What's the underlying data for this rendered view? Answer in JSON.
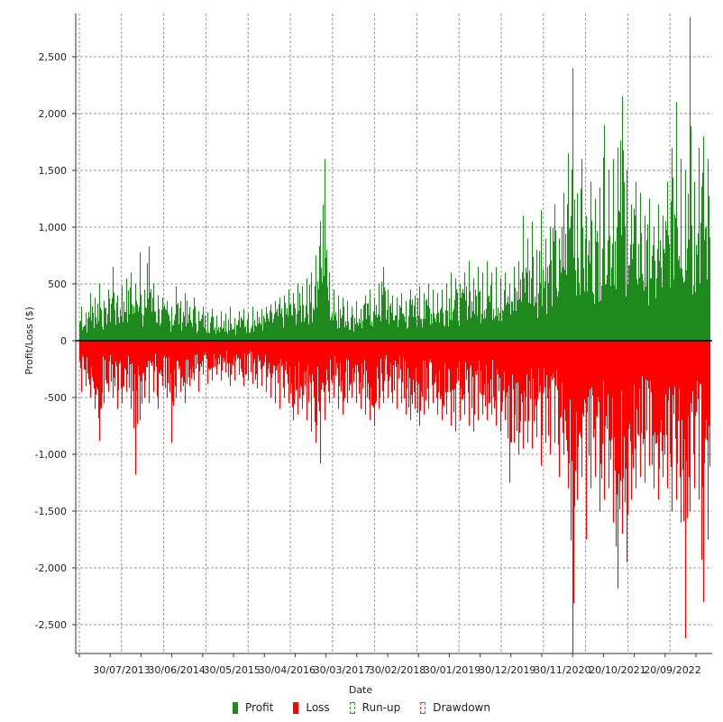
{
  "chart_data": {
    "type": "bar",
    "title": "",
    "xlabel": "Date",
    "ylabel": "Profit/Loss ($)",
    "ylim": [
      -2800,
      2900
    ],
    "yticks": [
      -2500,
      -2000,
      -1500,
      -1000,
      -500,
      0,
      500,
      1000,
      1500,
      2000,
      2500
    ],
    "ytick_labels": [
      "-2,500",
      "-2,000",
      "-1,500",
      "-1,000",
      "-500",
      "0",
      "500",
      "1,000",
      "1,500",
      "2,000",
      "2,500"
    ],
    "xtick_labels": [
      "30/07/2013",
      "30/06/2014",
      "30/05/2015",
      "30/04/2016",
      "30/03/2017",
      "30/02/2018",
      "30/01/2019",
      "30/12/2019",
      "30/11/2020",
      "20/10/2021",
      "20/09/2022"
    ],
    "grid": true,
    "legend": {
      "placement": "bottom",
      "entries": [
        "Profit",
        "Loss",
        "Run-up",
        "Drawdown"
      ]
    },
    "colors": {
      "profit": "#1e8a1e",
      "loss": "#ff0000",
      "runup": "#2e9a2e",
      "drawdown": "#ff3030"
    },
    "series": [
      {
        "name": "Profit",
        "values": [
          300,
          250,
          420,
          380,
          500,
          350,
          450,
          650,
          400,
          480,
          550,
          600,
          500,
          780,
          450,
          830,
          500,
          400,
          380,
          350,
          300,
          480,
          350,
          420,
          300,
          380,
          260,
          300,
          250,
          280,
          220,
          260,
          240,
          300,
          200,
          260,
          280,
          240,
          300,
          260,
          280,
          300,
          320,
          350,
          380,
          400,
          450,
          420,
          500,
          480,
          550,
          600,
          750,
          1050,
          1600,
          600,
          450,
          400,
          380,
          350,
          300,
          350,
          280,
          400,
          450,
          380,
          500,
          650,
          450,
          400,
          380,
          420,
          350,
          450,
          400,
          480,
          420,
          500,
          450,
          420,
          450,
          500,
          600,
          550,
          500,
          600,
          700,
          550,
          650,
          600,
          700,
          600,
          650,
          550,
          600,
          500,
          650,
          700,
          1100,
          900,
          1050,
          800,
          1150,
          900,
          1000,
          1200,
          900,
          1300,
          1650,
          2400,
          1300,
          1600,
          1100,
          1400,
          1250,
          1350,
          1900,
          1500,
          1600,
          1700,
          2150,
          1500,
          1200,
          1400,
          1300,
          1100,
          1250,
          1000,
          1200,
          1100,
          1400,
          1700,
          2100,
          1600,
          1500,
          2850,
          1400,
          1700,
          1800,
          1600
        ]
      },
      {
        "name": "Loss",
        "values": [
          -450,
          -400,
          -500,
          -600,
          -880,
          -550,
          -450,
          -500,
          -600,
          -550,
          -450,
          -600,
          -1180,
          -700,
          -500,
          -550,
          -450,
          -600,
          -400,
          -500,
          -900,
          -500,
          -450,
          -550,
          -400,
          -350,
          -450,
          -300,
          -380,
          -350,
          -300,
          -350,
          -280,
          -400,
          -350,
          -300,
          -400,
          -350,
          -380,
          -420,
          -400,
          -450,
          -500,
          -550,
          -600,
          -500,
          -550,
          -700,
          -650,
          -600,
          -700,
          -800,
          -900,
          -1080,
          -700,
          -550,
          -500,
          -600,
          -650,
          -550,
          -500,
          -550,
          -600,
          -650,
          -700,
          -750,
          -600,
          -550,
          -500,
          -550,
          -600,
          -550,
          -650,
          -700,
          -600,
          -750,
          -650,
          -600,
          -550,
          -650,
          -700,
          -650,
          -750,
          -800,
          -700,
          -650,
          -750,
          -800,
          -700,
          -650,
          -700,
          -650,
          -750,
          -800,
          -700,
          -1250,
          -900,
          -1000,
          -950,
          -900,
          -950,
          -850,
          -1100,
          -900,
          -1000,
          -900,
          -1200,
          -1000,
          -1300,
          -2750,
          -1400,
          -1200,
          -1750,
          -1300,
          -1200,
          -1500,
          -1400,
          -1300,
          -1600,
          -2180,
          -1700,
          -1950,
          -1400,
          -1300,
          -1200,
          -1250,
          -1100,
          -1300,
          -1400,
          -1200,
          -1300,
          -1500,
          -1400,
          -1600,
          -2620,
          -1500,
          -1300,
          -1400,
          -2300,
          -1750
        ]
      }
    ]
  }
}
